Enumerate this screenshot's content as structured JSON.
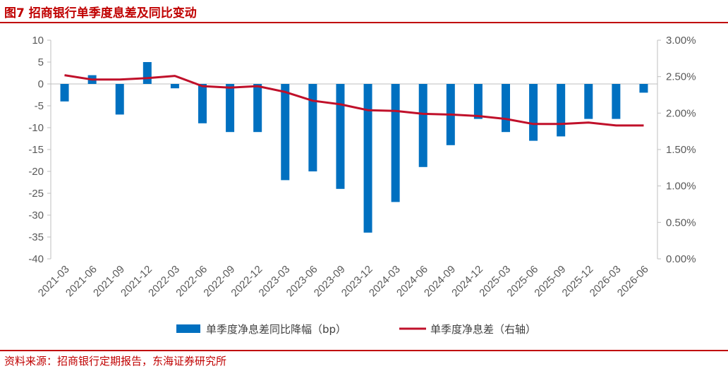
{
  "header": {
    "title": "图7  招商银行单季度息差及同比变动"
  },
  "footer": {
    "source": "资料来源：招商银行定期报告，东海证券研究所"
  },
  "colors": {
    "bar": "#0070c0",
    "line": "#c0102a",
    "accent": "#c00000"
  },
  "chart_data": {
    "type": "bar",
    "categories": [
      "2021-03",
      "2021-06",
      "2021-09",
      "2021-12",
      "2022-03",
      "2022-06",
      "2022-09",
      "2022-12",
      "2023-03",
      "2023-06",
      "2023-09",
      "2023-12",
      "2024-03",
      "2024-06",
      "2024-09",
      "2024-12",
      "2025-03",
      "2025-06",
      "2025-09",
      "2025-12",
      "2026-03",
      "2026-06"
    ],
    "series": [
      {
        "name": "单季度净息差同比降幅（bp）",
        "type": "bar",
        "axis": "left",
        "values": [
          -4,
          2,
          -7,
          5,
          -1,
          -9,
          -11,
          -11,
          -22,
          -20,
          -24,
          -34,
          -27,
          -19,
          -14,
          -8,
          -11,
          -13,
          -12,
          -8,
          -8,
          -2
        ]
      },
      {
        "name": "单季度净息差（右轴）",
        "type": "line",
        "axis": "right",
        "values": [
          2.52,
          2.46,
          2.46,
          2.48,
          2.51,
          2.37,
          2.35,
          2.37,
          2.29,
          2.17,
          2.12,
          2.04,
          2.03,
          1.99,
          1.98,
          1.96,
          1.92,
          1.85,
          1.85,
          1.87,
          1.83,
          1.83
        ]
      }
    ],
    "y_left": {
      "min": -40,
      "max": 10,
      "step": 5,
      "ticks": [
        "10",
        "5",
        "0",
        "-5",
        "-10",
        "-15",
        "-20",
        "-25",
        "-30",
        "-35",
        "-40"
      ]
    },
    "y_right": {
      "min": 0.0,
      "max": 3.0,
      "step": 0.5,
      "ticks": [
        "3.00%",
        "2.50%",
        "2.00%",
        "1.50%",
        "1.00%",
        "0.50%",
        "0.00%"
      ]
    },
    "grid": false,
    "legend": "bottom-center"
  }
}
